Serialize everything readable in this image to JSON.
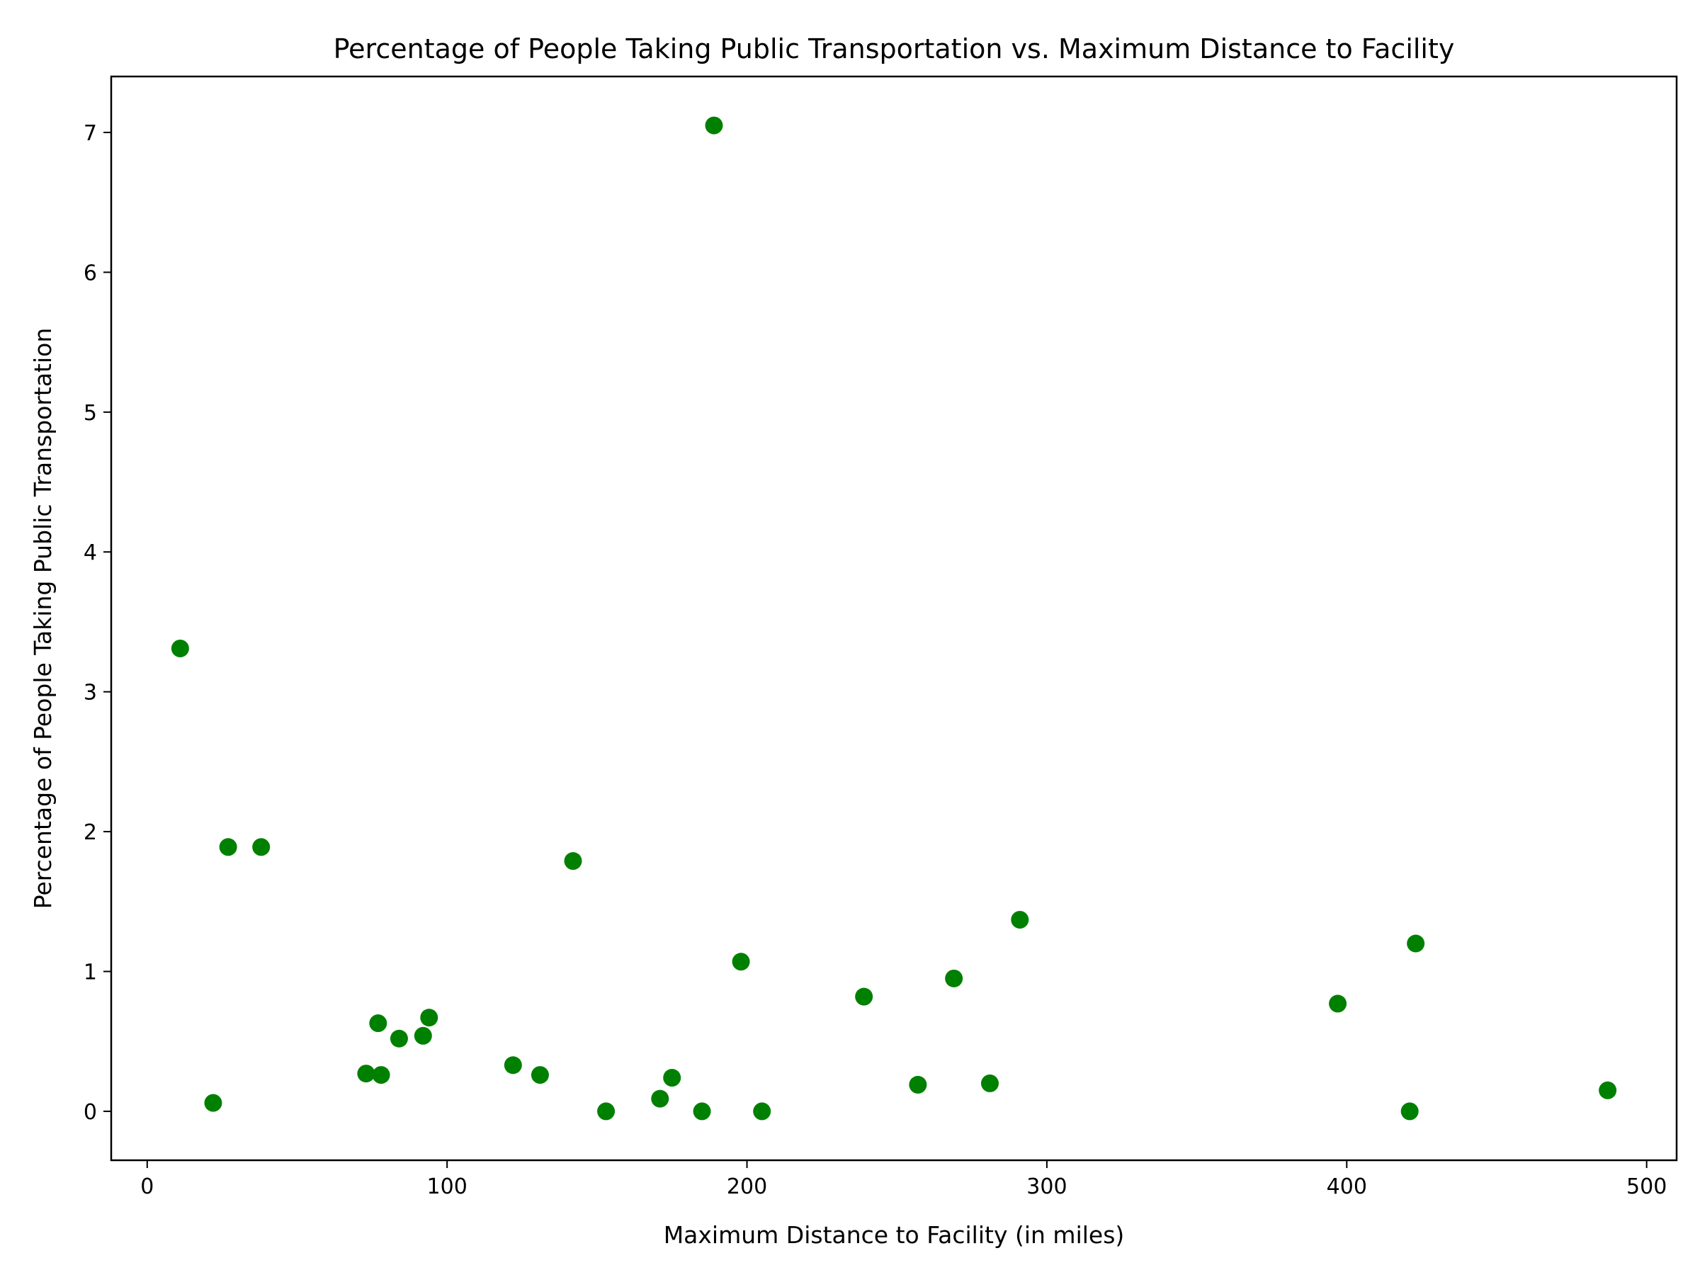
{
  "chart_data": {
    "type": "scatter",
    "title": "Percentage of People Taking Public Transportation vs. Maximum Distance to Facility",
    "xlabel": "Maximum Distance to Facility (in miles)",
    "ylabel": "Percentage of People Taking Public Transportation",
    "xlim": [
      -12,
      510
    ],
    "ylim": [
      -0.35,
      7.4
    ],
    "xticks": [
      0,
      100,
      200,
      300,
      400,
      500
    ],
    "yticks": [
      0,
      1,
      2,
      3,
      4,
      5,
      6,
      7
    ],
    "grid": false,
    "marker_color": "#008000",
    "points": [
      {
        "x": 11,
        "y": 3.31
      },
      {
        "x": 22,
        "y": 0.06
      },
      {
        "x": 27,
        "y": 1.89
      },
      {
        "x": 38,
        "y": 1.89
      },
      {
        "x": 73,
        "y": 0.27
      },
      {
        "x": 77,
        "y": 0.63
      },
      {
        "x": 78,
        "y": 0.26
      },
      {
        "x": 84,
        "y": 0.52
      },
      {
        "x": 92,
        "y": 0.54
      },
      {
        "x": 94,
        "y": 0.67
      },
      {
        "x": 122,
        "y": 0.33
      },
      {
        "x": 131,
        "y": 0.26
      },
      {
        "x": 142,
        "y": 1.79
      },
      {
        "x": 153,
        "y": 0.0
      },
      {
        "x": 171,
        "y": 0.09
      },
      {
        "x": 175,
        "y": 0.24
      },
      {
        "x": 185,
        "y": 0.0
      },
      {
        "x": 189,
        "y": 7.05
      },
      {
        "x": 198,
        "y": 1.07
      },
      {
        "x": 205,
        "y": 0.0
      },
      {
        "x": 239,
        "y": 0.82
      },
      {
        "x": 257,
        "y": 0.19
      },
      {
        "x": 269,
        "y": 0.95
      },
      {
        "x": 281,
        "y": 0.2
      },
      {
        "x": 291,
        "y": 1.37
      },
      {
        "x": 397,
        "y": 0.77
      },
      {
        "x": 421,
        "y": 0.0
      },
      {
        "x": 423,
        "y": 1.2
      },
      {
        "x": 487,
        "y": 0.15
      }
    ]
  }
}
